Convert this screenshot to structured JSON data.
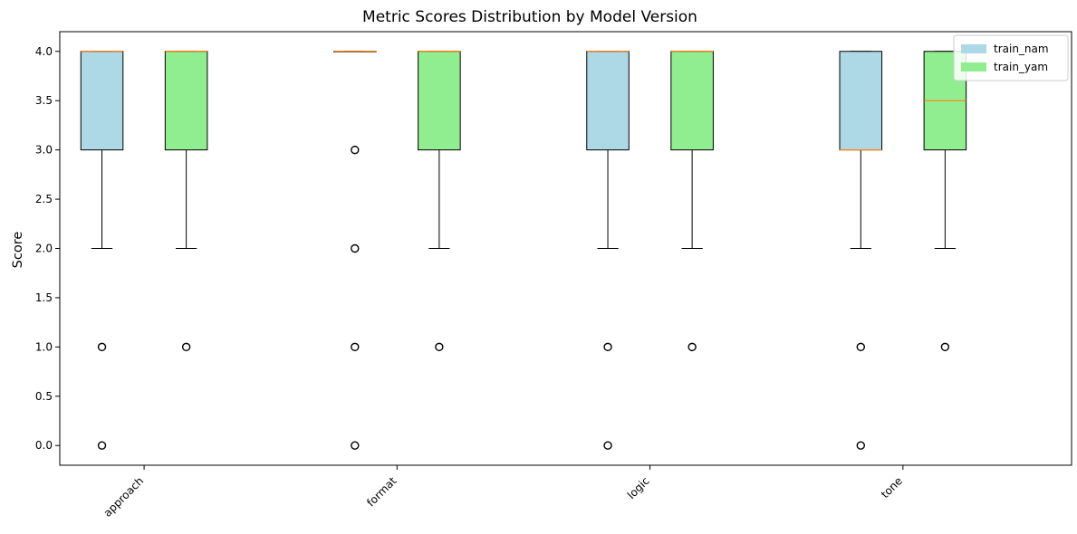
{
  "chart_data": {
    "type": "boxplot",
    "title": "Metric Scores Distribution by Model Version",
    "xlabel": "",
    "ylabel": "Score",
    "ylim": [
      -0.2,
      4.2
    ],
    "yticks": [
      "0.0",
      "0.5",
      "1.0",
      "1.5",
      "2.0",
      "2.5",
      "3.0",
      "3.5",
      "4.0"
    ],
    "categories": [
      "approach",
      "format",
      "logic",
      "tone"
    ],
    "legend_position": "top-right",
    "grid": false,
    "series": [
      {
        "name": "train_nam",
        "color": "#add8e6",
        "boxes": [
          {
            "q1": 3.0,
            "median": 4.0,
            "q3": 4.0,
            "whisker_low": 2.0,
            "whisker_high": 4.0,
            "outliers": [
              1.0,
              0.0
            ]
          },
          {
            "q1": 4.0,
            "median": 4.0,
            "q3": 4.0,
            "whisker_low": 4.0,
            "whisker_high": 4.0,
            "outliers": [
              3.0,
              2.0,
              1.0,
              0.0
            ]
          },
          {
            "q1": 3.0,
            "median": 4.0,
            "q3": 4.0,
            "whisker_low": 2.0,
            "whisker_high": 4.0,
            "outliers": [
              1.0,
              0.0
            ]
          },
          {
            "q1": 3.0,
            "median": 3.0,
            "q3": 4.0,
            "whisker_low": 2.0,
            "whisker_high": 4.0,
            "outliers": [
              1.0,
              0.0
            ]
          }
        ]
      },
      {
        "name": "train_yam",
        "color": "#90ee90",
        "boxes": [
          {
            "q1": 3.0,
            "median": 4.0,
            "q3": 4.0,
            "whisker_low": 2.0,
            "whisker_high": 4.0,
            "outliers": [
              1.0
            ]
          },
          {
            "q1": 3.0,
            "median": 4.0,
            "q3": 4.0,
            "whisker_low": 2.0,
            "whisker_high": 4.0,
            "outliers": [
              1.0
            ]
          },
          {
            "q1": 3.0,
            "median": 4.0,
            "q3": 4.0,
            "whisker_low": 2.0,
            "whisker_high": 4.0,
            "outliers": [
              1.0
            ]
          },
          {
            "q1": 3.0,
            "median": 3.5,
            "q3": 4.0,
            "whisker_low": 2.0,
            "whisker_high": 4.0,
            "outliers": [
              1.0
            ]
          }
        ]
      }
    ]
  }
}
